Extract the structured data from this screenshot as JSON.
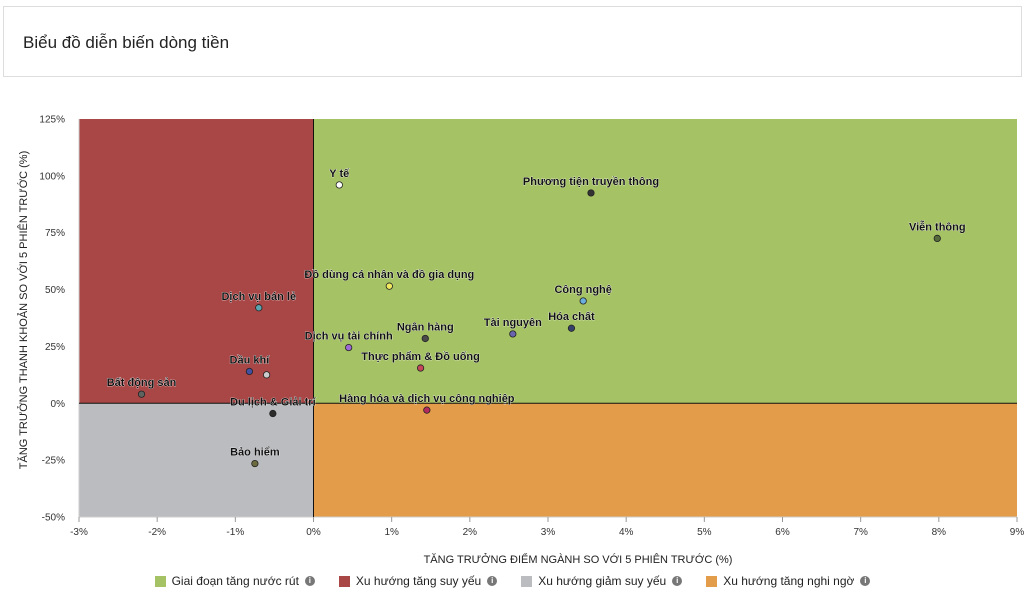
{
  "header": {
    "title": "Biểu đồ diễn biến dòng tiền"
  },
  "chart_data": {
    "type": "scatter",
    "xlabel": "TĂNG TRƯỞNG ĐIỂM NGÀNH SO VỚI 5 PHIÊN TRƯỚC (%)",
    "ylabel": "TĂNG TRƯỞNG THANH KHOẢN SO VỚI 5 PHIÊN TRƯỚC (%)",
    "xlim": [
      -3,
      9
    ],
    "ylim": [
      -50,
      125
    ],
    "x_ticks": [
      -3,
      -2,
      -1,
      0,
      1,
      2,
      3,
      4,
      5,
      6,
      7,
      8,
      9
    ],
    "y_ticks": [
      -50,
      -25,
      0,
      25,
      50,
      75,
      100,
      125
    ],
    "quadrants": [
      {
        "name": "Giai đoạn tăng nước rút",
        "color": "#a5c264",
        "x_range": [
          0,
          9
        ],
        "y_range": [
          0,
          125
        ]
      },
      {
        "name": "Xu hướng tăng suy yếu",
        "color": "#a94646",
        "x_range": [
          -3,
          0
        ],
        "y_range": [
          0,
          125
        ]
      },
      {
        "name": "Xu hướng giảm suy yếu",
        "color": "#bbbcc0",
        "x_range": [
          -3,
          0
        ],
        "y_range": [
          -50,
          0
        ]
      },
      {
        "name": "Xu hướng tăng nghi ngờ",
        "color": "#e39d4a",
        "x_range": [
          0,
          9
        ],
        "y_range": [
          -50,
          0
        ]
      }
    ],
    "points": [
      {
        "label": "Y tế",
        "x": 0.33,
        "y": 96,
        "color": "#ffffff"
      },
      {
        "label": "Phương tiện truyền thông",
        "x": 3.55,
        "y": 92.5,
        "color": "#333333"
      },
      {
        "label": "Viễn thông",
        "x": 7.98,
        "y": 72.5,
        "color": "#556b3c"
      },
      {
        "label": "Đồ dùng cá nhân và đồ gia dụng",
        "x": 0.97,
        "y": 51.5,
        "color": "#f2ea5e"
      },
      {
        "label": "Công nghệ",
        "x": 3.45,
        "y": 45,
        "color": "#6aaee0"
      },
      {
        "label": "Dịch vụ bán lẻ",
        "x": -0.7,
        "y": 42,
        "color": "#5aa6b0"
      },
      {
        "label": "Hóa chất",
        "x": 3.3,
        "y": 33,
        "color": "#37406b"
      },
      {
        "label": "Tài nguyên",
        "x": 2.55,
        "y": 30.5,
        "color": "#6a64b0"
      },
      {
        "label": "Ngân hàng",
        "x": 1.43,
        "y": 28.5,
        "color": "#4a4a4a"
      },
      {
        "label": "Dịch vụ tài chính",
        "x": 0.45,
        "y": 24.5,
        "color": "#9d6ad6"
      },
      {
        "label": "Thực phẩm & Đồ uống",
        "x": 1.37,
        "y": 15.5,
        "color": "#c4475a"
      },
      {
        "label": "Dầu khí",
        "x": -0.82,
        "y": 14,
        "color": "#4150a0"
      },
      {
        "label": "",
        "x": -0.6,
        "y": 12.5,
        "color": "#cccccc"
      },
      {
        "label": "Bất động sản",
        "x": -2.2,
        "y": 4,
        "color": "#5f6461"
      },
      {
        "label": "Hàng hóa và dịch vụ công nghiệp",
        "x": 1.45,
        "y": -3,
        "color": "#b52a5e"
      },
      {
        "label": "Du lịch & Giải trí",
        "x": -0.52,
        "y": -4.5,
        "color": "#2c2c2c"
      },
      {
        "label": "Bảo hiểm",
        "x": -0.75,
        "y": -26.5,
        "color": "#6b6b3f"
      }
    ],
    "legend": {
      "placement": "bottom"
    }
  }
}
